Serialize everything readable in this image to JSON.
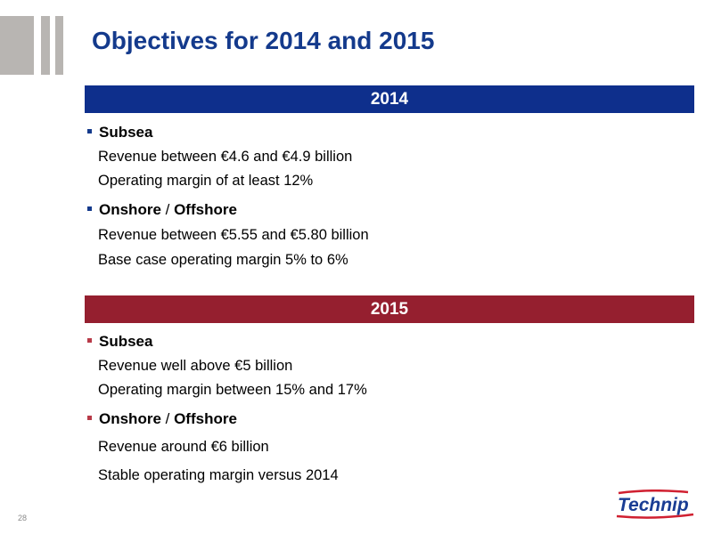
{
  "title": "Objectives for 2014 and 2015",
  "sections": [
    {
      "year": "2014",
      "groups": [
        {
          "heading_a": "Subsea",
          "heading_sep": "",
          "heading_b": "",
          "lines": [
            "Revenue between €4.6 and €4.9 billion",
            "Operating margin of at least 12%"
          ]
        },
        {
          "heading_a": "Onshore",
          "heading_sep": " / ",
          "heading_b": "Offshore",
          "lines": [
            "Revenue between €5.55 and €5.80 billion",
            "Base case operating margin 5% to 6%"
          ]
        }
      ]
    },
    {
      "year": "2015",
      "groups": [
        {
          "heading_a": "Subsea",
          "heading_sep": "",
          "heading_b": "",
          "lines": [
            "Revenue well above €5 billion",
            "Operating margin between 15% and 17%"
          ]
        },
        {
          "heading_a": "Onshore",
          "heading_sep": " / ",
          "heading_b": "Offshore",
          "lines": [
            "Revenue around €6 billion",
            "Stable operating margin versus 2014"
          ]
        }
      ]
    }
  ],
  "page_number": "28",
  "logo_text": "Technip",
  "colors": {
    "title": "#143a8c",
    "bar_2014": "#0e2f8c",
    "bar_2015": "#951f2f",
    "logo_blue": "#1a3d94",
    "logo_red": "#d02030"
  }
}
